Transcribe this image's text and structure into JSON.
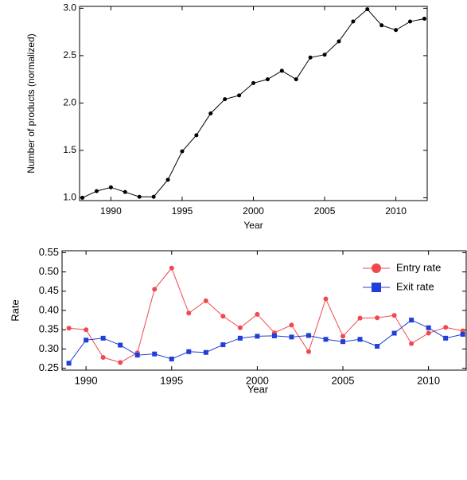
{
  "chart_data": [
    {
      "type": "line",
      "x_label": "Year",
      "y_label": "Number of products (normalized)",
      "x": [
        1988,
        1989,
        1990,
        1991,
        1992,
        1993,
        1994,
        1995,
        1996,
        1997,
        1998,
        1999,
        2000,
        2001,
        2002,
        2003,
        2004,
        2005,
        2006,
        2007,
        2008,
        2009,
        2010,
        2011,
        2012
      ],
      "series": [
        {
          "color": "#000000",
          "marker": "circle",
          "values": [
            1.0,
            1.07,
            1.11,
            1.06,
            1.01,
            1.01,
            1.19,
            1.49,
            1.66,
            1.89,
            2.04,
            2.08,
            2.21,
            2.25,
            2.34,
            2.25,
            2.48,
            2.51,
            2.65,
            2.86,
            2.99,
            2.82,
            2.77,
            2.86,
            2.89
          ]
        }
      ],
      "xlim": [
        1987.8,
        2012.2
      ],
      "xticks": [
        1990,
        1995,
        2000,
        2005,
        2010
      ],
      "ylim": [
        0.97,
        3.02
      ],
      "yticks": [
        {
          "value": 1.0,
          "label": "1.0"
        },
        1.5,
        {
          "value": 2.0,
          "label": "2.0"
        },
        2.5,
        {
          "value": 3.0,
          "label": "3.0"
        }
      ]
    },
    {
      "type": "line",
      "x_label": "Year",
      "y_label": "Rate",
      "legend": "upper right",
      "x": [
        1989,
        1990,
        1991,
        1992,
        1993,
        1994,
        1995,
        1996,
        1997,
        1998,
        1999,
        2000,
        2001,
        2002,
        2003,
        2004,
        2005,
        2006,
        2007,
        2008,
        2009,
        2010,
        2011,
        2012
      ],
      "series": [
        {
          "name": "Entry rate",
          "color": "#f0484e",
          "marker": "circle",
          "values": [
            0.354,
            0.35,
            0.278,
            0.265,
            0.29,
            0.455,
            0.51,
            0.393,
            0.425,
            0.385,
            0.355,
            0.39,
            0.342,
            0.362,
            0.293,
            0.43,
            0.333,
            0.38,
            0.381,
            0.387,
            0.314,
            0.341,
            0.356,
            0.347
          ]
        },
        {
          "name": "Exit rate",
          "color": "#1f3fd8",
          "marker": "square",
          "values": [
            0.263,
            0.323,
            0.328,
            0.31,
            0.284,
            0.287,
            0.274,
            0.293,
            0.291,
            0.311,
            0.328,
            0.333,
            0.334,
            0.331,
            0.335,
            0.325,
            0.319,
            0.325,
            0.307,
            0.341,
            0.375,
            0.355,
            0.328,
            0.338
          ]
        }
      ],
      "xlim": [
        1988.6,
        2012.2
      ],
      "xticks": [
        1990,
        1995,
        2000,
        2005,
        2010
      ],
      "ylim": [
        0.245,
        0.555
      ],
      "yticks": [
        0.25,
        {
          "value": 0.3,
          "label": "0.30"
        },
        0.35,
        {
          "value": 0.4,
          "label": "0.40"
        },
        0.45,
        {
          "value": 0.5,
          "label": "0.50"
        },
        0.55
      ]
    }
  ]
}
